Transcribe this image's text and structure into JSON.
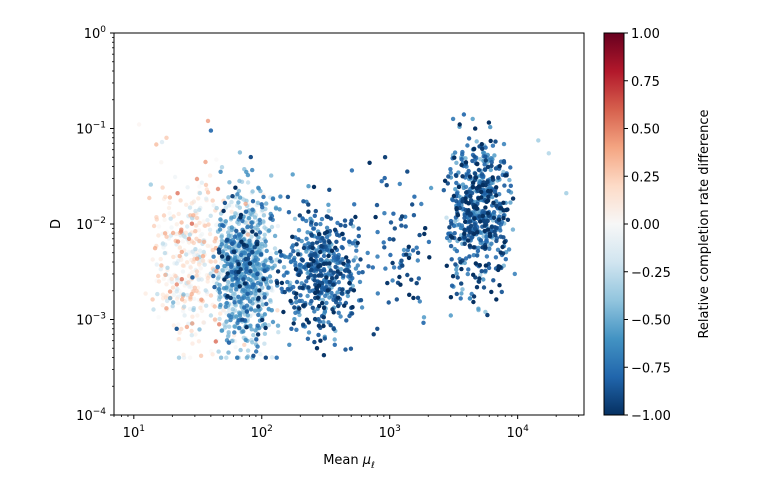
{
  "chart_data": {
    "type": "scatter",
    "xlabel": "Mean μ_ℓ",
    "ylabel": "D",
    "colorbar_label": "Relative completion rate difference",
    "x_scale": "log",
    "y_scale": "log",
    "xlim": [
      7,
      33000
    ],
    "ylim": [
      0.0001,
      1
    ],
    "x_ticks": [
      {
        "value": 10,
        "base": "10",
        "exp": "1"
      },
      {
        "value": 100,
        "base": "10",
        "exp": "2"
      },
      {
        "value": 1000,
        "base": "10",
        "exp": "3"
      },
      {
        "value": 10000,
        "base": "10",
        "exp": "4"
      }
    ],
    "y_ticks": [
      {
        "value": 0.0001,
        "base": "10",
        "exp": "−4"
      },
      {
        "value": 0.001,
        "base": "10",
        "exp": "−3"
      },
      {
        "value": 0.01,
        "base": "10",
        "exp": "−2"
      },
      {
        "value": 0.1,
        "base": "10",
        "exp": "−1"
      },
      {
        "value": 1,
        "base": "10",
        "exp": "0"
      }
    ],
    "colorbar": {
      "colormap": "RdBu_r",
      "range": [
        -1,
        1
      ],
      "ticks": [
        {
          "value": 1.0,
          "label": "1.00"
        },
        {
          "value": 0.75,
          "label": "0.75"
        },
        {
          "value": 0.5,
          "label": "0.50"
        },
        {
          "value": 0.25,
          "label": "0.25"
        },
        {
          "value": 0.0,
          "label": "0.00"
        },
        {
          "value": -0.25,
          "label": "−0.25"
        },
        {
          "value": -0.5,
          "label": "−0.50"
        },
        {
          "value": -0.75,
          "label": "−0.75"
        },
        {
          "value": -1.0,
          "label": "−1.00"
        }
      ],
      "stops": [
        "#053061",
        "#2166ac",
        "#4393c3",
        "#92c5de",
        "#d1e5f0",
        "#f7f7f7",
        "#fddbc7",
        "#f4a582",
        "#d6604d",
        "#b2182b",
        "#67001f"
      ]
    },
    "clusters": [
      {
        "x_range": [
          12,
          60
        ],
        "log_y_mean": -2.4,
        "log_y_sd": 0.45,
        "value_mean": 0.05,
        "value_sd": 0.22,
        "count": 380
      },
      {
        "x_range": [
          40,
          140
        ],
        "log_y_mean": -2.45,
        "log_y_sd": 0.4,
        "value_mean": -0.45,
        "value_sd": 0.25,
        "count": 950
      },
      {
        "x_range": [
          120,
          700
        ],
        "log_y_mean": -2.5,
        "log_y_sd": 0.35,
        "value_mean": -0.8,
        "value_sd": 0.15,
        "count": 500
      },
      {
        "x_range": [
          600,
          2500
        ],
        "log_y_mean": -2.35,
        "log_y_sd": 0.35,
        "value_mean": -0.85,
        "value_sd": 0.12,
        "count": 70
      },
      {
        "x_range": [
          2500,
          9500
        ],
        "log_y_mean": -1.85,
        "log_y_sd": 0.35,
        "value_mean": -0.8,
        "value_sd": 0.18,
        "count": 600
      }
    ],
    "points": [
      {
        "x": 11,
        "y": 0.11,
        "v": 0.05
      },
      {
        "x": 15,
        "y": 0.068,
        "v": 0.35
      },
      {
        "x": 18,
        "y": 0.08,
        "v": 0.3
      },
      {
        "x": 38,
        "y": 0.12,
        "v": 0.45
      },
      {
        "x": 40,
        "y": 0.095,
        "v": -0.8
      },
      {
        "x": 22,
        "y": 0.021,
        "v": 0.55
      },
      {
        "x": 27,
        "y": 0.007,
        "v": 0.5
      },
      {
        "x": 55,
        "y": 0.00045,
        "v": -0.5
      },
      {
        "x": 270,
        "y": 0.0005,
        "v": -1.0
      },
      {
        "x": 750,
        "y": 0.0007,
        "v": -0.95
      },
      {
        "x": 800,
        "y": 0.0008,
        "v": -0.9
      },
      {
        "x": 920,
        "y": 0.05,
        "v": -0.95
      },
      {
        "x": 3800,
        "y": 0.14,
        "v": -0.8
      },
      {
        "x": 14500,
        "y": 0.075,
        "v": -0.4
      },
      {
        "x": 17500,
        "y": 0.055,
        "v": -0.35
      },
      {
        "x": 24000,
        "y": 0.021,
        "v": -0.4
      },
      {
        "x": 5600,
        "y": 0.0012,
        "v": -0.45
      },
      {
        "x": 3000,
        "y": 0.0011,
        "v": -0.6
      },
      {
        "x": 9500,
        "y": 0.003,
        "v": -0.7
      },
      {
        "x": 1250,
        "y": 0.012,
        "v": -0.95
      },
      {
        "x": 1500,
        "y": 0.016,
        "v": -0.9
      }
    ]
  }
}
